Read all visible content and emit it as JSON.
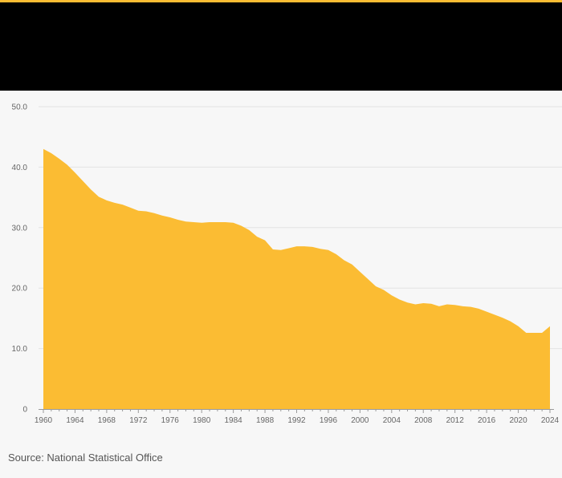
{
  "colors": {
    "accent": "#fbbc33",
    "header": "#000000",
    "area": "#fbbc33",
    "grid": "#e3e3e3",
    "background": "#f7f7f7"
  },
  "source": "Source: National Statistical Office",
  "chart_data": {
    "type": "area",
    "title": "",
    "xlabel": "",
    "ylabel": "",
    "ylim": [
      0,
      50
    ],
    "xlim": [
      1960,
      2024
    ],
    "grid": true,
    "legend": "none",
    "x_ticks": [
      "1960",
      "1964",
      "1968",
      "1972",
      "1976",
      "1980",
      "1984",
      "1988",
      "1992",
      "1996",
      "2000",
      "2004",
      "2008",
      "2012",
      "2016",
      "2020",
      "2024"
    ],
    "y_ticks": [
      "0",
      "10.0",
      "20.0",
      "30.0",
      "40.0",
      "50.0"
    ],
    "x": [
      1960,
      1961,
      1962,
      1963,
      1964,
      1965,
      1966,
      1967,
      1968,
      1969,
      1970,
      1971,
      1972,
      1973,
      1974,
      1975,
      1976,
      1977,
      1978,
      1979,
      1980,
      1981,
      1982,
      1983,
      1984,
      1985,
      1986,
      1987,
      1988,
      1989,
      1990,
      1991,
      1992,
      1993,
      1994,
      1995,
      1996,
      1997,
      1998,
      1999,
      2000,
      2001,
      2002,
      2003,
      2004,
      2005,
      2006,
      2007,
      2008,
      2009,
      2010,
      2011,
      2012,
      2013,
      2014,
      2015,
      2016,
      2017,
      2018,
      2019,
      2020,
      2021,
      2022,
      2023,
      2024
    ],
    "series": [
      {
        "values": [
          43.0,
          42.3,
          41.4,
          40.4,
          39.1,
          37.7,
          36.3,
          35.1,
          34.5,
          34.1,
          33.8,
          33.3,
          32.8,
          32.7,
          32.4,
          32.0,
          31.7,
          31.3,
          31.0,
          30.9,
          30.8,
          30.9,
          30.9,
          30.9,
          30.8,
          30.3,
          29.6,
          28.5,
          27.9,
          26.4,
          26.3,
          26.6,
          26.9,
          26.9,
          26.8,
          26.5,
          26.3,
          25.6,
          24.6,
          23.9,
          22.7,
          21.5,
          20.3,
          19.7,
          18.8,
          18.1,
          17.6,
          17.3,
          17.5,
          17.4,
          17.0,
          17.3,
          17.2,
          17.0,
          16.9,
          16.6,
          16.1,
          15.6,
          15.1,
          14.5,
          13.7,
          12.6,
          12.6,
          12.6,
          13.7
        ]
      }
    ]
  }
}
